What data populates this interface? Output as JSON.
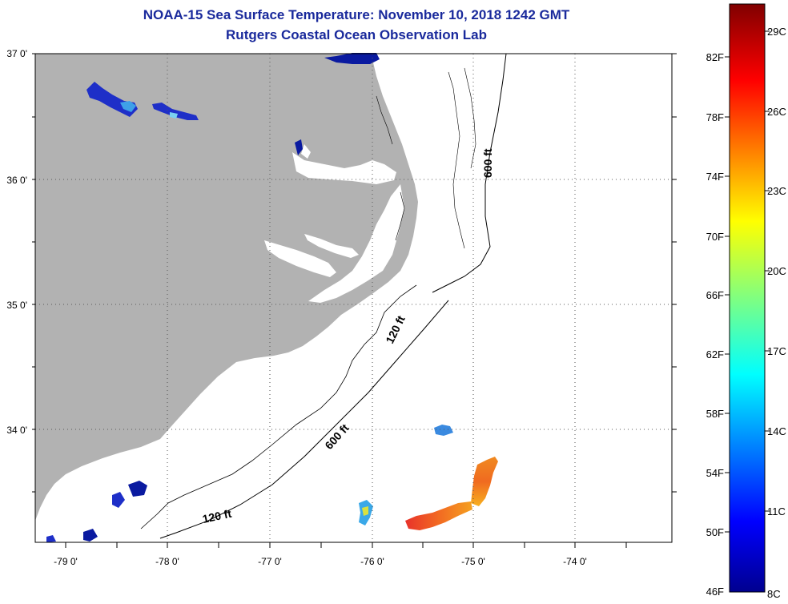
{
  "title": "NOAA-15 Sea Surface Temperature:  November 10, 2018 1242 GMT",
  "subtitle": "Rutgers Coastal Ocean Observation Lab",
  "lat_labels": [
    "37 0'",
    "36 0'",
    "35 0'",
    "34 0'"
  ],
  "lon_labels": [
    "-79 0'",
    "-78 0'",
    "-77 0'",
    "-76 0'",
    "-75 0'",
    "-74 0'"
  ],
  "contour_labels": [
    "600 ft",
    "120 ft",
    "600 ft",
    "120 ft"
  ],
  "colorbar": {
    "fahrenheit_labels": [
      "82F",
      "78F",
      "74F",
      "70F",
      "66F",
      "62F",
      "58F",
      "54F",
      "50F",
      "46F"
    ],
    "celsius_labels": [
      "29C",
      "26C",
      "23C",
      "20C",
      "17C",
      "14C",
      "11C",
      "8C"
    ]
  },
  "colors": {
    "land": "#b2b2b2",
    "ocean_no_data": "#ffffff",
    "title_blue": "#1a2a9c",
    "grid": "#000000"
  }
}
